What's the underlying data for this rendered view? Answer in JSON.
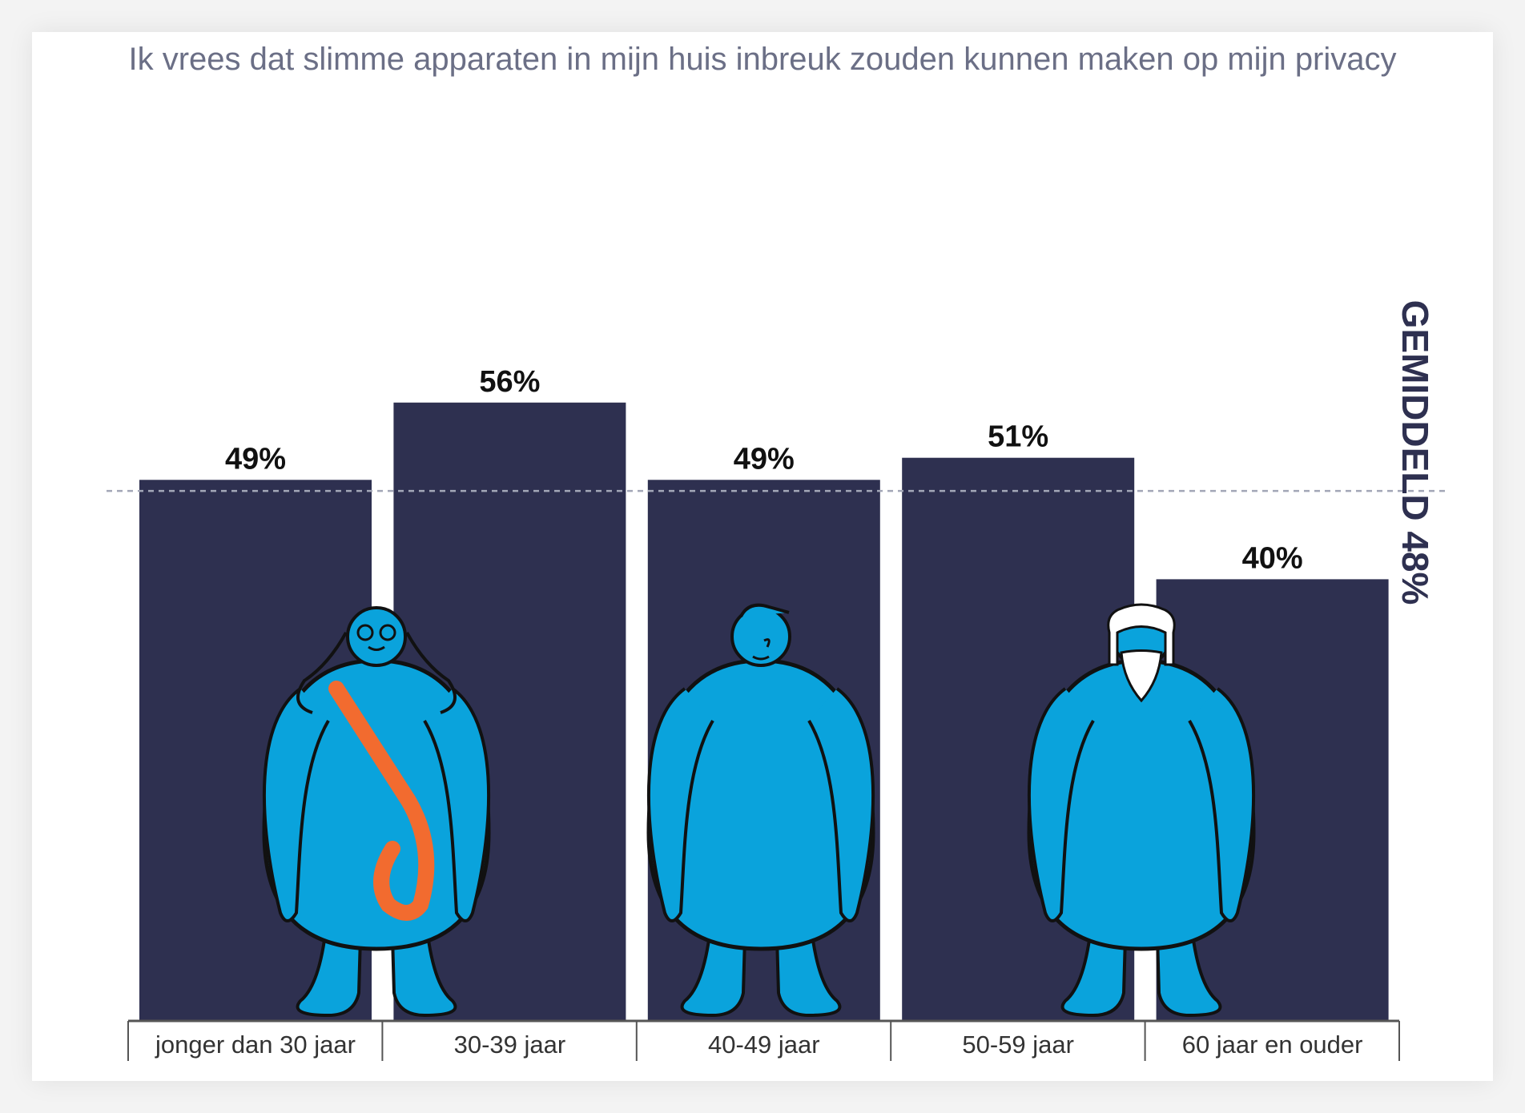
{
  "chart_data": {
    "type": "bar",
    "title": "Ik vrees dat slimme apparaten in mijn huis inbreuk zouden kunnen maken op mijn privacy",
    "categories": [
      "jonger dan 30 jaar",
      "30-39 jaar",
      "40-49 jaar",
      "50-59 jaar",
      "60 jaar en ouder"
    ],
    "values": [
      49,
      56,
      49,
      51,
      40
    ],
    "value_labels": [
      "49%",
      "56%",
      "49%",
      "51%",
      "40%"
    ],
    "ylim": [
      0,
      100
    ],
    "average": {
      "value": 48,
      "label": "GEMIDDELD 48%"
    },
    "bar_color": "#2e3050",
    "average_line_color": "#a3a7b7",
    "axis_color": "#555555",
    "illustration_color": "#0aa3dc",
    "bag_color": "#f26b2f"
  }
}
